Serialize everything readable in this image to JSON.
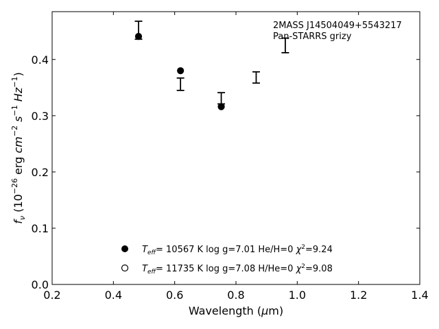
{
  "chart_data": {
    "type": "scatter",
    "title": "",
    "annotation_lines": [
      "2MASS J14504049+5543217",
      "Pan-STARRS grizy"
    ],
    "xlabel": {
      "main": "Wavelength (",
      "mu": "μ",
      "unit": "m)"
    },
    "ylabel": {
      "f": "f",
      "nu": "ν",
      "pre": " (10",
      "e1": "−26",
      "mid1": " erg ",
      "cm": "cm",
      "e2": "−2",
      "mid2": " ",
      "s": "s",
      "e3": "−1",
      "mid3": " ",
      "hz": "Hz",
      "e4": "−1",
      "post": ")"
    },
    "xlim": [
      0.2,
      1.4
    ],
    "ylim": [
      0.0,
      0.485
    ],
    "xticks": [
      "0.2",
      "0.4",
      "0.6",
      "0.8",
      "1.0",
      "1.2",
      "1.4"
    ],
    "yticks": [
      "0.0",
      "0.1",
      "0.2",
      "0.3",
      "0.4"
    ],
    "grid": false,
    "legend_placement": "lower-center",
    "observed": {
      "name": "",
      "marker": "errorbar",
      "points": [
        {
          "x": 0.482,
          "y": 0.452,
          "err": 0.016
        },
        {
          "x": 0.619,
          "y": 0.356,
          "err": 0.011
        },
        {
          "x": 0.752,
          "y": 0.331,
          "err": 0.01
        },
        {
          "x": 0.866,
          "y": 0.368,
          "err": 0.01
        },
        {
          "x": 0.961,
          "y": 0.425,
          "err": 0.013
        }
      ]
    },
    "models": [
      {
        "marker": "filled-circle",
        "legend": {
          "teff": "T",
          "eff": "eff",
          "text": "= 10567 K  log g=7.01  He/H=0  ",
          "chi": "χ",
          "chi_exp": "2",
          "chi_val": "=9.24"
        },
        "points": [
          {
            "x": 0.482,
            "y": 0.441
          },
          {
            "x": 0.619,
            "y": 0.38
          },
          {
            "x": 0.752,
            "y": 0.316
          }
        ]
      },
      {
        "marker": "open-circle",
        "legend": {
          "teff": "T",
          "eff": "eff",
          "text": "= 11735 K  log g=7.08  H/He=0  ",
          "chi": "χ",
          "chi_exp": "2",
          "chi_val": "=9.08"
        },
        "points": []
      }
    ]
  }
}
